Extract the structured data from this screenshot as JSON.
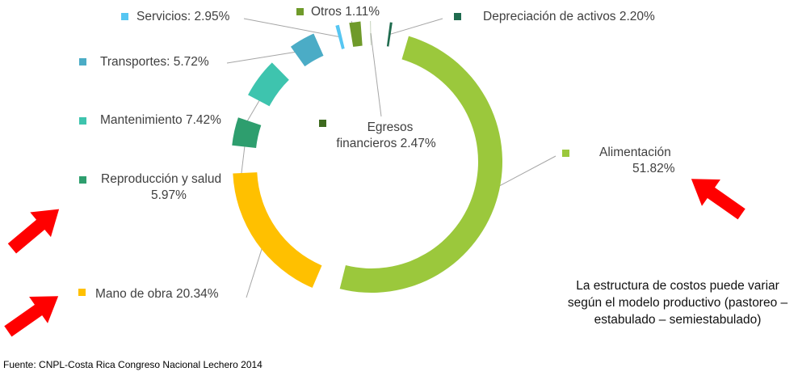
{
  "chart_data": {
    "type": "pie",
    "variant": "doughnut",
    "series": [
      {
        "values": [
          {
            "category": "Alimentación",
            "label": "Alimentación",
            "value_label": "51.82%",
            "value": 51.82,
            "color": "#9BC83C"
          },
          {
            "category": "Mano de obra",
            "label": "Mano de obra",
            "value_label": "20.34%",
            "value": 20.34,
            "color": "#FFC000"
          },
          {
            "category": "Reproducción y salud",
            "label": "Reproducción y salud",
            "value_label": "5.97%",
            "value": 5.97,
            "color": "#2E9E6E"
          },
          {
            "category": "Mantenimiento",
            "label": "Mantenimiento",
            "value_label": "7.42%",
            "value": 7.42,
            "color": "#3EC4AE"
          },
          {
            "category": "Transportes",
            "label": "Transportes",
            "value_label": "5.72%",
            "value": 5.72,
            "color": "#4BACC6"
          },
          {
            "category": "Servicios",
            "label": "Servicios",
            "value_label": "2.95%",
            "value": 2.95,
            "color": "#56C6F2"
          },
          {
            "category": "Otros",
            "label": "Otros",
            "value_label": "1.11%",
            "value": 1.11,
            "color": "#6F9A2A"
          },
          {
            "category": "Egresos financieros",
            "label": "Egresos financieros",
            "value_label": "2.47%",
            "value": 2.47,
            "color": "#3E6A1F"
          },
          {
            "category": "Depreciación de activos",
            "label": "Depreciación de activos",
            "value_label": "2.20%",
            "value": 2.2,
            "color": "#1F6B4E"
          }
        ]
      }
    ],
    "legend": "none",
    "data_labels": "outside with leader lines"
  },
  "annotation": {
    "text": "La estructura de costos puede variar según el modelo productivo (pastoreo – estabulado – semiestabulado)",
    "arrow_color": "#FF0000"
  },
  "source": "Fuente: CNPL-Costa Rica Congreso Nacional Lechero 2014"
}
